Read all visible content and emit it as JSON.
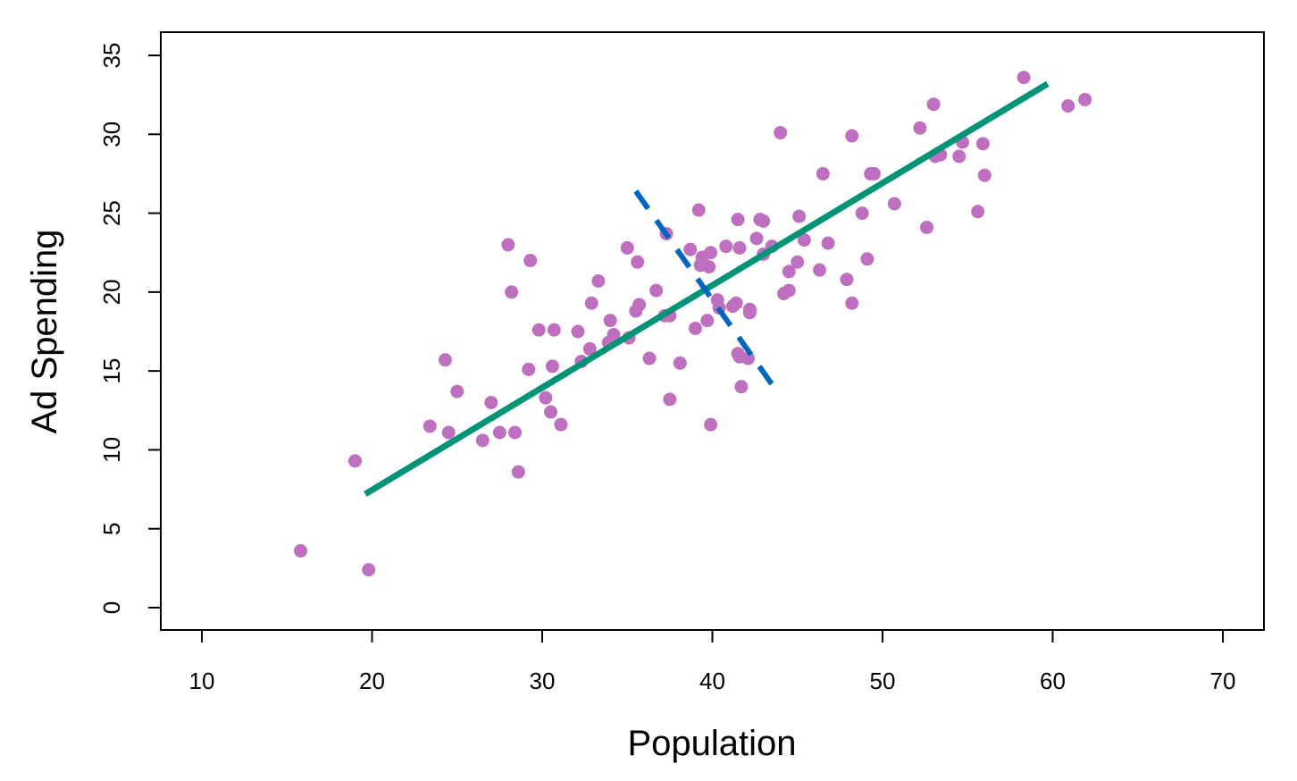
{
  "chart_data": {
    "type": "scatter",
    "title": "",
    "xlabel": "Population",
    "ylabel": "Ad Spending",
    "xlim": [
      10,
      70
    ],
    "ylim": [
      0,
      35
    ],
    "xticks": [
      10,
      20,
      30,
      40,
      50,
      60,
      70
    ],
    "yticks": [
      0,
      5,
      10,
      15,
      20,
      25,
      30,
      35
    ],
    "grid": false,
    "colors": {
      "points": "#bf6fbf",
      "fit_line": "#009477",
      "perpendicular_line": "#0066bf",
      "axis": "#000000"
    },
    "points": [
      [
        15.8,
        3.6
      ],
      [
        19.0,
        9.3
      ],
      [
        19.8,
        2.4
      ],
      [
        23.4,
        11.5
      ],
      [
        24.3,
        15.7
      ],
      [
        24.5,
        11.1
      ],
      [
        25.0,
        13.7
      ],
      [
        26.5,
        10.6
      ],
      [
        27.0,
        13.0
      ],
      [
        27.5,
        11.1
      ],
      [
        28.0,
        23.0
      ],
      [
        28.2,
        20.0
      ],
      [
        28.4,
        11.1
      ],
      [
        28.6,
        8.6
      ],
      [
        29.2,
        15.1
      ],
      [
        29.3,
        22.0
      ],
      [
        29.8,
        17.6
      ],
      [
        30.2,
        13.3
      ],
      [
        30.5,
        12.4
      ],
      [
        30.6,
        15.3
      ],
      [
        30.7,
        17.6
      ],
      [
        31.1,
        11.6
      ],
      [
        32.1,
        17.5
      ],
      [
        32.3,
        15.6
      ],
      [
        32.8,
        16.4
      ],
      [
        32.9,
        19.3
      ],
      [
        33.3,
        20.7
      ],
      [
        33.9,
        16.8
      ],
      [
        34.0,
        18.2
      ],
      [
        34.2,
        17.3
      ],
      [
        35.0,
        22.8
      ],
      [
        35.1,
        17.1
      ],
      [
        35.5,
        18.8
      ],
      [
        35.6,
        21.9
      ],
      [
        35.7,
        19.2
      ],
      [
        36.3,
        15.8
      ],
      [
        36.7,
        20.1
      ],
      [
        37.2,
        18.5
      ],
      [
        37.3,
        23.7
      ],
      [
        37.5,
        18.5
      ],
      [
        37.5,
        13.2
      ],
      [
        38.1,
        15.5
      ],
      [
        38.7,
        22.7
      ],
      [
        39.0,
        17.7
      ],
      [
        39.2,
        25.2
      ],
      [
        39.3,
        21.7
      ],
      [
        39.4,
        22.2
      ],
      [
        39.7,
        18.2
      ],
      [
        39.8,
        21.6
      ],
      [
        39.9,
        22.5
      ],
      [
        39.9,
        11.6
      ],
      [
        40.3,
        19.5
      ],
      [
        40.4,
        19.0
      ],
      [
        40.8,
        22.9
      ],
      [
        41.2,
        19.1
      ],
      [
        41.4,
        19.3
      ],
      [
        41.5,
        24.6
      ],
      [
        41.5,
        16.1
      ],
      [
        41.6,
        22.8
      ],
      [
        41.6,
        15.9
      ],
      [
        41.7,
        14.0
      ],
      [
        42.1,
        15.8
      ],
      [
        42.2,
        18.9
      ],
      [
        42.2,
        18.7
      ],
      [
        42.6,
        23.4
      ],
      [
        42.8,
        24.6
      ],
      [
        43.0,
        24.5
      ],
      [
        43.0,
        22.4
      ],
      [
        43.5,
        22.9
      ],
      [
        44.0,
        30.1
      ],
      [
        44.2,
        19.9
      ],
      [
        44.5,
        20.1
      ],
      [
        44.5,
        21.3
      ],
      [
        45.0,
        21.9
      ],
      [
        45.1,
        24.8
      ],
      [
        45.4,
        23.3
      ],
      [
        46.3,
        21.4
      ],
      [
        46.5,
        27.5
      ],
      [
        46.8,
        23.1
      ],
      [
        47.9,
        20.8
      ],
      [
        48.2,
        29.9
      ],
      [
        48.2,
        19.3
      ],
      [
        48.8,
        25.0
      ],
      [
        49.1,
        22.1
      ],
      [
        49.3,
        27.5
      ],
      [
        49.5,
        27.5
      ],
      [
        50.7,
        25.6
      ],
      [
        52.2,
        30.4
      ],
      [
        52.6,
        24.1
      ],
      [
        53.0,
        31.9
      ],
      [
        53.1,
        28.6
      ],
      [
        53.4,
        28.7
      ],
      [
        54.5,
        28.6
      ],
      [
        54.7,
        29.5
      ],
      [
        55.6,
        25.1
      ],
      [
        55.9,
        29.4
      ],
      [
        56.0,
        27.4
      ],
      [
        58.3,
        33.6
      ],
      [
        60.9,
        31.8
      ],
      [
        61.9,
        32.2
      ]
    ],
    "fit_line": {
      "x": [
        19.6,
        59.7
      ],
      "y": [
        7.2,
        33.2
      ]
    },
    "perpendicular_line": {
      "x": [
        35.5,
        43.6
      ],
      "y": [
        26.4,
        14.0
      ],
      "style": "dashed"
    }
  }
}
